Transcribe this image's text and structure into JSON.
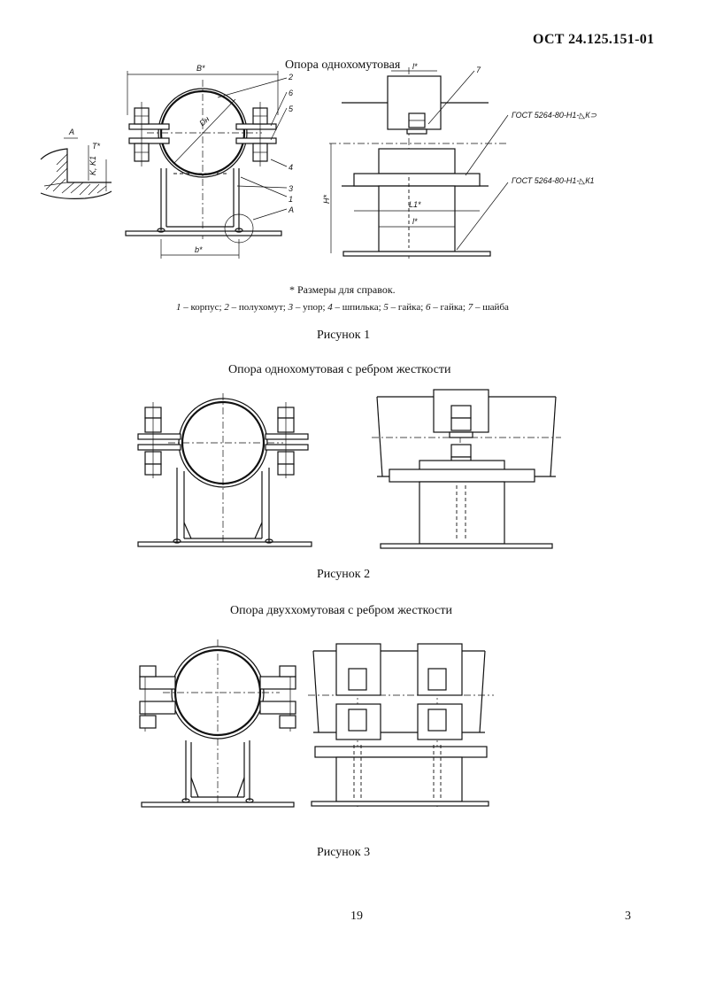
{
  "header": {
    "doc_code": "ОСТ 24.125.151-01"
  },
  "figure1": {
    "title": "Опора однохомутовая",
    "caption": "Рисунок 1",
    "footnote": "* Размеры для справок.",
    "parts_legend": [
      {
        "num": "1",
        "name": " – корпус;  "
      },
      {
        "num": "2",
        "name": " – полухомут;  "
      },
      {
        "num": "3",
        "name": " – упор;  "
      },
      {
        "num": "4",
        "name": " – шпилька;  "
      },
      {
        "num": "5",
        "name": " – гайка;  "
      },
      {
        "num": "6",
        "name": " – гайка;  "
      },
      {
        "num": "7",
        "name": " – шайба"
      }
    ],
    "labels": {
      "B": "B*",
      "D": "Dн",
      "b": "b*",
      "A": "A",
      "A2": "A",
      "p1": "1",
      "p2": "2",
      "p3": "3",
      "p4": "4",
      "p5": "5",
      "p6": "6",
      "p7": "7",
      "l": "l*",
      "L1": "L1*",
      "l2": "l*",
      "H": "H*",
      "T": "T*",
      "K": "K, K1",
      "gost1": "ГОСТ 5264-80-Н1-◺К⊃",
      "gost2": "ГОСТ 5264-80-Н1-◺К1"
    }
  },
  "figure2": {
    "title": "Опора однохомутовая с ребром жесткости",
    "caption": "Рисунок 2"
  },
  "figure3": {
    "title": "Опора двуххомутовая с ребром жесткости",
    "caption": "Рисунок 3"
  },
  "footer": {
    "page_number": "19",
    "sheet_number": "3"
  }
}
